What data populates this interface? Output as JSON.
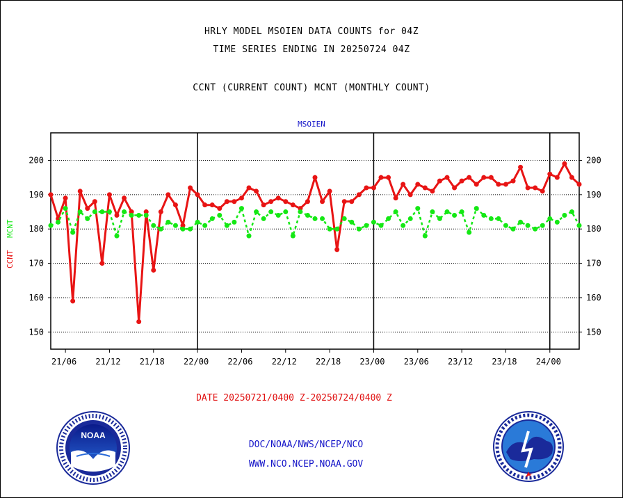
{
  "page": {
    "title_line1": "HRLY MODEL MSOIEN DATA COUNTS for 04Z",
    "title_line2": "TIME SERIES ENDING IN 20250724 04Z",
    "title_line3": "CCNT (CURRENT COUNT) MCNT (MONTHLY COUNT)",
    "date_range": "DATE 20250721/0400 Z-20250724/0400 Z",
    "footer_line1": "DOC/NOAA/NWS/NCEP/NCO",
    "footer_line2": "WWW.NCO.NCEP.NOAA.GOV",
    "noaa_logo_text": "NOAA",
    "colors": {
      "ccnt": "#e81414",
      "mcnt": "#14e814",
      "label_blue": "#1414c8"
    },
    "icons": {
      "left_logo": "noaa-logo-icon",
      "right_logo": "nws-logo-icon"
    }
  },
  "chart_data": {
    "type": "line",
    "title": "MSOIEN",
    "ylabel_ccnt": "CCNT",
    "ylabel_mcnt": "MCNT",
    "ylim": [
      145,
      208
    ],
    "yticks": [
      150,
      160,
      170,
      180,
      190,
      200
    ],
    "xtick_labels": [
      "21/06",
      "21/12",
      "21/18",
      "22/00",
      "22/06",
      "22/12",
      "22/18",
      "23/00",
      "23/06",
      "23/12",
      "23/18",
      "24/00"
    ],
    "xtick_hours": [
      2,
      8,
      14,
      20,
      26,
      32,
      38,
      44,
      50,
      56,
      62,
      68
    ],
    "day_boundaries_hours": [
      20,
      44,
      68
    ],
    "x_hours_range": [
      0,
      72
    ],
    "grid": true,
    "series": [
      {
        "name": "CCNT",
        "values": [
          190,
          183,
          189,
          159,
          191,
          186,
          188,
          170,
          190,
          184,
          189,
          185,
          153,
          185,
          168,
          185,
          190,
          187,
          181,
          192,
          190,
          187,
          187,
          186,
          188,
          188,
          189,
          192,
          191,
          187,
          188,
          189,
          188,
          187,
          186,
          188,
          195,
          188,
          191,
          174,
          188,
          188,
          190,
          192,
          192,
          195,
          195,
          189,
          193,
          190,
          193,
          192,
          191,
          194,
          195,
          192,
          194,
          195,
          193,
          195,
          195,
          193,
          193,
          194,
          198,
          192,
          192,
          191,
          196,
          195,
          199,
          195,
          193
        ]
      },
      {
        "name": "MCNT",
        "values": [
          181,
          182,
          186,
          179,
          185,
          183,
          185,
          185,
          185,
          178,
          185,
          184,
          184,
          184,
          181,
          180,
          182,
          181,
          180,
          180,
          182,
          181,
          183,
          184,
          181,
          182,
          186,
          178,
          185,
          183,
          185,
          184,
          185,
          178,
          185,
          184,
          183,
          183,
          180,
          180,
          183,
          182,
          180,
          181,
          182,
          181,
          183,
          185,
          181,
          183,
          186,
          178,
          185,
          183,
          185,
          184,
          185,
          179,
          186,
          184,
          183,
          183,
          181,
          180,
          182,
          181,
          180,
          181,
          183,
          182,
          184,
          185,
          181
        ]
      }
    ]
  }
}
